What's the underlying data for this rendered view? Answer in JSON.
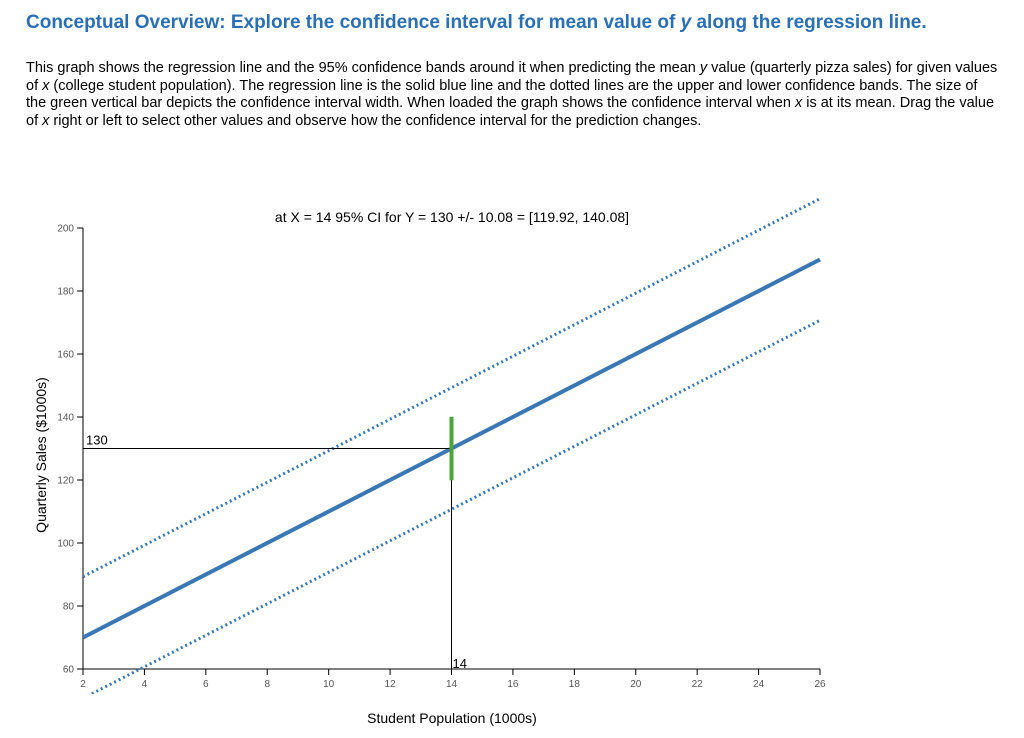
{
  "header": {
    "title_prefix": "Conceptual Overview: Explore the confidence interval for mean value of ",
    "title_var": "y",
    "title_suffix": " along the regression line."
  },
  "description": {
    "p1": "This graph shows the regression line and the 95% confidence bands around it when predicting the mean ",
    "v1": "y",
    "p2": " value (quarterly pizza sales) for given values of ",
    "v2": "x",
    "p3": " (college student population). The regression line is the solid blue line and the dotted lines are the upper and lower confidence bands. The size of the green vertical bar depicts the confidence interval width. When loaded the graph shows the confidence interval when ",
    "v3": "x",
    "p4": " is at its mean. Drag the value of ",
    "v4": "x",
    "p5": " right or left to select other values and observe how the confidence interval for the prediction changes."
  },
  "chart_data": {
    "type": "line",
    "xlabel": "Student Population (1000s)",
    "ylabel": "Quarterly Sales ($1000s)",
    "xlim": [
      2,
      26
    ],
    "ylim": [
      60,
      200
    ],
    "x_ticks": [
      2,
      4,
      6,
      8,
      10,
      12,
      14,
      16,
      18,
      20,
      22,
      24,
      26
    ],
    "y_ticks": [
      60,
      80,
      100,
      120,
      140,
      160,
      180,
      200
    ],
    "grid": false,
    "regression": {
      "intercept": 60,
      "slope": 5
    },
    "upper_band": [
      [
        2,
        89.3
      ],
      [
        26,
        209.3
      ]
    ],
    "lower_band": [
      [
        2,
        50.7
      ],
      [
        26,
        170.7
      ]
    ],
    "selected_x": 14,
    "selected_y": 130,
    "ci_half_width": 10.08,
    "ci_lower": 119.92,
    "ci_upper": 140.08,
    "ci_text": "at X = 14 95% CI for Y = 130 +/- 10.08 = [119.92, 140.08]",
    "x_marker_label": "14",
    "y_marker_label": "130",
    "colors": {
      "regression": "#3a78b5",
      "bands": "#3a78b5",
      "ci_bar": "#4da33c",
      "guides": "#000000"
    }
  }
}
